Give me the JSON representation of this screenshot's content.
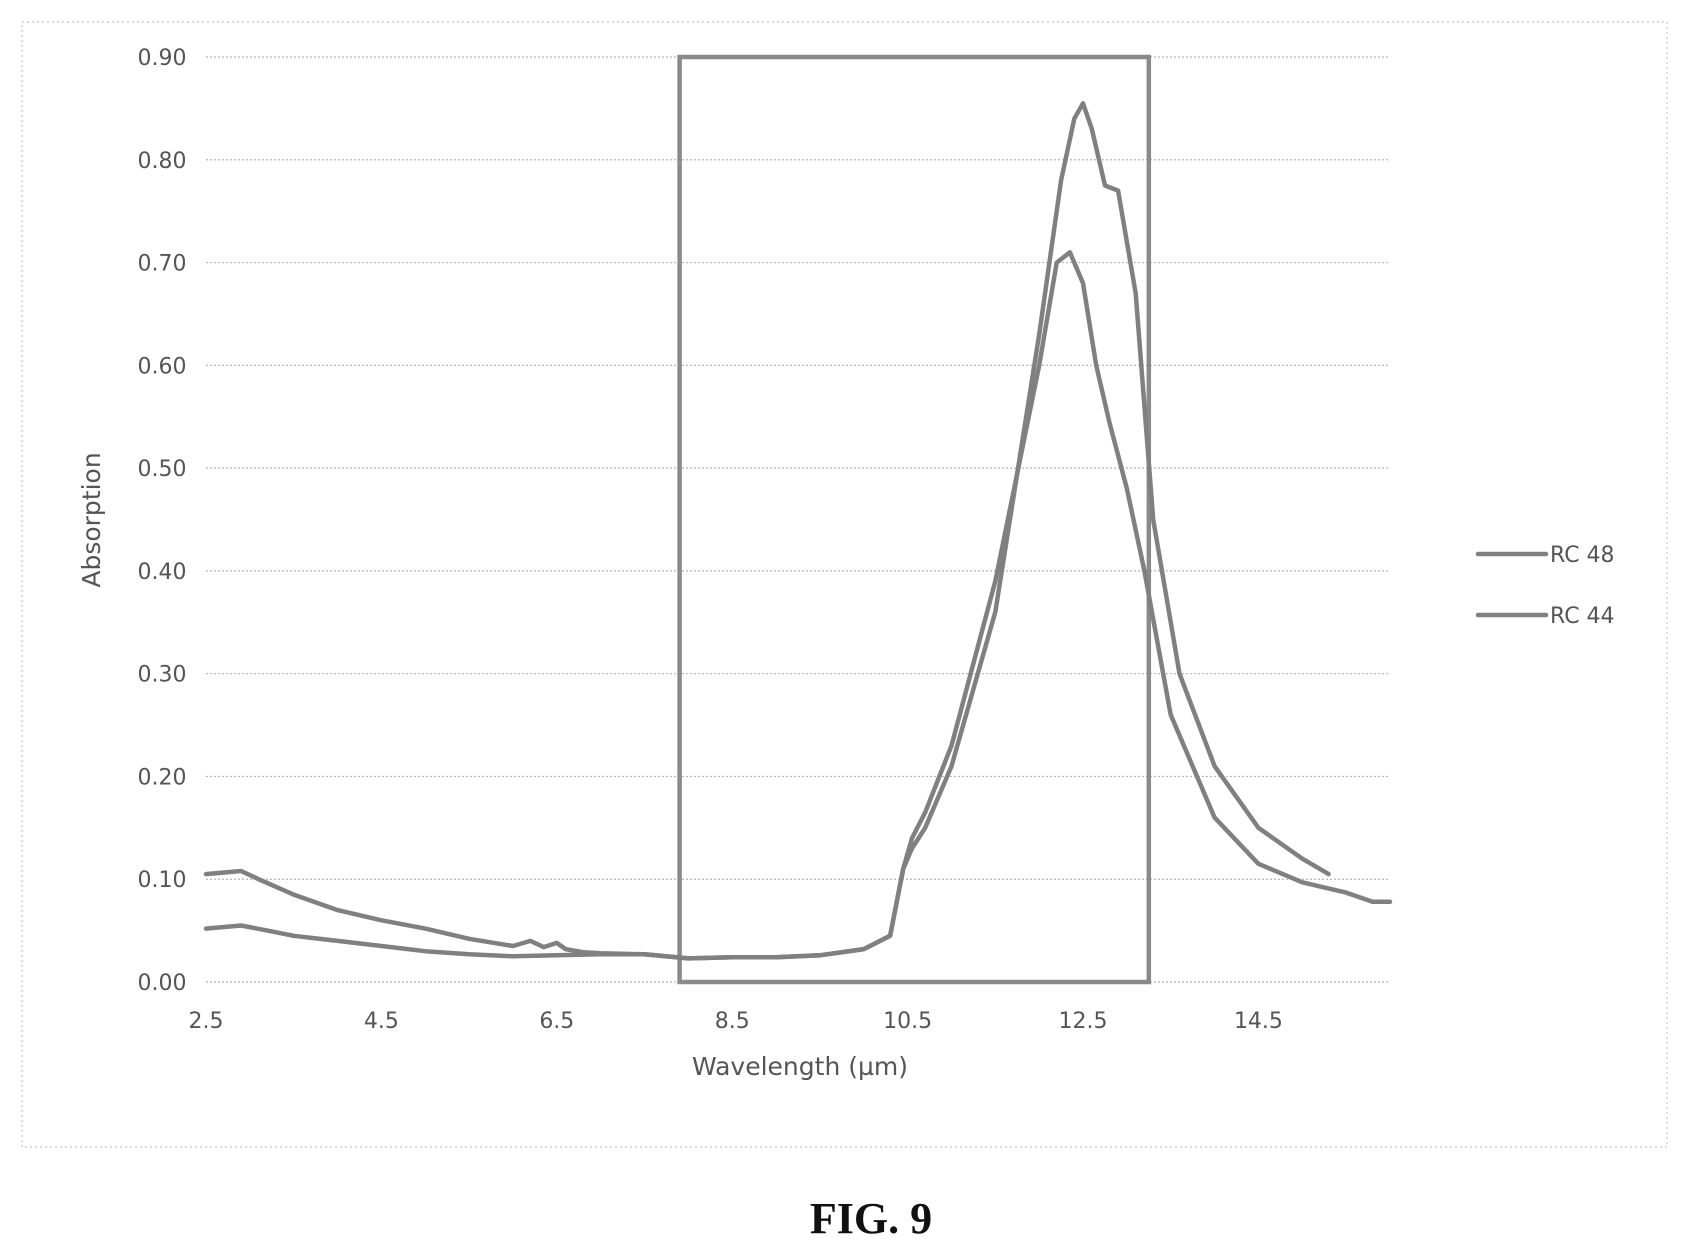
{
  "figure": {
    "caption": "FIG. 9"
  },
  "chart_data": {
    "type": "line",
    "xlabel": "Wavelength (µm)",
    "ylabel": "Absorption",
    "xlim": [
      2.5,
      16.0
    ],
    "ylim": [
      0,
      0.9
    ],
    "xticks": [
      2.5,
      4.5,
      6.5,
      8.5,
      10.5,
      12.5,
      14.5
    ],
    "xtick_labels": [
      "2.5",
      "4.5",
      "6.5",
      "8.5",
      "10.5",
      "12.5",
      "14.5"
    ],
    "yticks": [
      0,
      0.1,
      0.2,
      0.3,
      0.4,
      0.5,
      0.6,
      0.7,
      0.8,
      0.9
    ],
    "ytick_labels": [
      "0.00",
      "0.10",
      "0.20",
      "0.30",
      "0.40",
      "0.50",
      "0.60",
      "0.70",
      "0.80",
      "0.90"
    ],
    "grid": true,
    "legend_position": "right",
    "highlight_band": {
      "x": [
        7.9,
        13.25
      ],
      "y": [
        0,
        0.9
      ]
    },
    "series": [
      {
        "name": "RC 48",
        "color": "#808080",
        "x": [
          2.5,
          2.9,
          3.1,
          3.5,
          4.0,
          4.5,
          5.0,
          5.5,
          6.0,
          6.2,
          6.35,
          6.5,
          6.6,
          6.8,
          7.0,
          7.5,
          8.0,
          8.5,
          9.0,
          9.5,
          10.0,
          10.3,
          10.45,
          10.55,
          10.7,
          11.0,
          11.5,
          12.0,
          12.2,
          12.35,
          12.5,
          12.65,
          12.8,
          13.0,
          13.2,
          13.5,
          14.0,
          14.5,
          15.0,
          15.5,
          15.8,
          16.0
        ],
        "y": [
          0.105,
          0.108,
          0.1,
          0.085,
          0.07,
          0.06,
          0.052,
          0.042,
          0.035,
          0.04,
          0.034,
          0.038,
          0.032,
          0.029,
          0.028,
          0.027,
          0.023,
          0.024,
          0.024,
          0.026,
          0.032,
          0.045,
          0.11,
          0.14,
          0.165,
          0.23,
          0.39,
          0.6,
          0.7,
          0.71,
          0.68,
          0.6,
          0.545,
          0.48,
          0.4,
          0.26,
          0.16,
          0.115,
          0.097,
          0.087,
          0.078,
          0.078
        ]
      },
      {
        "name": "RC 44",
        "color": "#808080",
        "x": [
          2.5,
          2.9,
          3.2,
          3.5,
          4.0,
          4.5,
          5.0,
          5.5,
          6.0,
          6.5,
          7.0,
          7.5,
          8.0,
          8.5,
          9.0,
          9.5,
          10.0,
          10.3,
          10.45,
          10.55,
          10.7,
          11.0,
          11.5,
          12.0,
          12.25,
          12.4,
          12.5,
          12.6,
          12.75,
          12.9,
          13.1,
          13.3,
          13.6,
          14.0,
          14.5,
          15.0,
          15.3
        ],
        "y": [
          0.052,
          0.055,
          0.05,
          0.045,
          0.04,
          0.035,
          0.03,
          0.027,
          0.025,
          0.026,
          0.027,
          0.027,
          0.023,
          0.024,
          0.024,
          0.026,
          0.032,
          0.045,
          0.11,
          0.13,
          0.15,
          0.21,
          0.36,
          0.63,
          0.78,
          0.84,
          0.855,
          0.83,
          0.775,
          0.77,
          0.67,
          0.45,
          0.3,
          0.21,
          0.15,
          0.12,
          0.105
        ]
      }
    ]
  }
}
